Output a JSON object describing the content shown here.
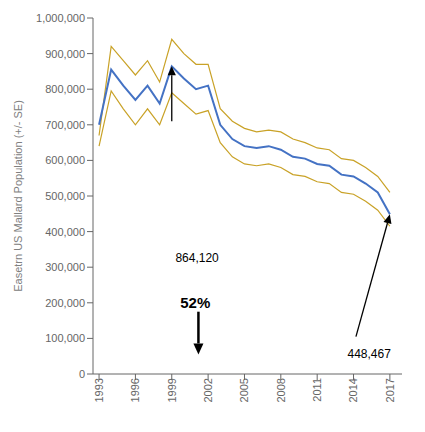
{
  "chart_data": {
    "type": "line",
    "ylabel": "Easetrn US Mallard Population (+/- SE)",
    "x": [
      1993,
      1994,
      1995,
      1996,
      1997,
      1998,
      1999,
      2000,
      2001,
      2002,
      2003,
      2004,
      2005,
      2006,
      2007,
      2008,
      2009,
      2010,
      2011,
      2012,
      2013,
      2014,
      2015,
      2016,
      2017
    ],
    "series": [
      {
        "color": "#C9A227",
        "values": [
          670000,
          920000,
          880000,
          840000,
          880000,
          820000,
          940000,
          900000,
          870000,
          870000,
          745000,
          710000,
          690000,
          680000,
          685000,
          680000,
          660000,
          650000,
          635000,
          630000,
          605000,
          600000,
          580000,
          555000,
          510000
        ]
      },
      {
        "color": "#C9A227",
        "values": [
          640000,
          795000,
          745000,
          700000,
          745000,
          700000,
          790000,
          760000,
          730000,
          740000,
          650000,
          610000,
          590000,
          585000,
          590000,
          580000,
          560000,
          555000,
          540000,
          535000,
          510000,
          505000,
          485000,
          460000,
          415000
        ]
      },
      {
        "color": "#4472C4",
        "values": [
          700000,
          855000,
          810000,
          770000,
          810000,
          760000,
          864120,
          830000,
          800000,
          810000,
          700000,
          660000,
          640000,
          635000,
          640000,
          630000,
          610000,
          605000,
          590000,
          585000,
          560000,
          555000,
          535000,
          510000,
          448467
        ]
      }
    ],
    "xlim": [
      1992.5,
      2018.0
    ],
    "xticks": [
      1993,
      1996,
      1999,
      2002,
      2005,
      2008,
      2011,
      2014,
      2017
    ],
    "ylim": [
      0,
      1000000
    ],
    "yticks": [
      0,
      {
        "value": 100000,
        "label": "100,000"
      },
      {
        "value": 200000,
        "label": "200,000"
      },
      {
        "value": 300000,
        "label": "300,000"
      },
      {
        "value": 400000,
        "label": "400,000"
      },
      {
        "value": 500000,
        "label": "500,000"
      },
      {
        "value": 600000,
        "label": "600,000"
      },
      {
        "value": 700000,
        "label": "700,000"
      },
      {
        "value": 800000,
        "label": "800,000"
      },
      {
        "value": 900000,
        "label": "900,000"
      },
      {
        "value": 1000000,
        "label": "1,000,000"
      }
    ],
    "grid": false,
    "annotations": [
      {
        "text": "864,120",
        "x": 1999,
        "y": 864120
      },
      {
        "text": "448,467",
        "x": 2017,
        "y": 448467
      },
      {
        "text": "52%"
      }
    ]
  }
}
